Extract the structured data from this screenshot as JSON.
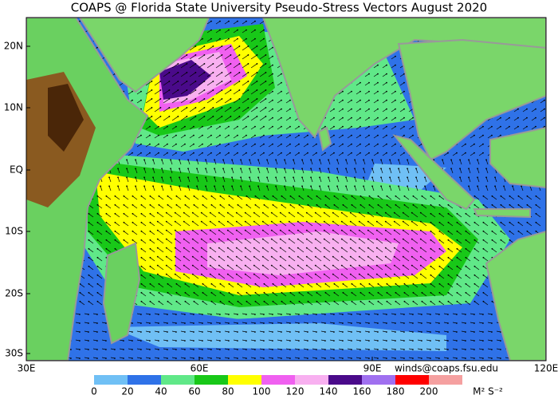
{
  "title": "COAPS @ Florida State University Pseudo-Stress Vectors August 2020",
  "lat_labels": [
    "20N",
    "10N",
    "EQ",
    "10S",
    "20S",
    "30S"
  ],
  "lon_labels": [
    "30E",
    "60E",
    "90E",
    "120E"
  ],
  "credit": "winds@coaps.fsu.edu",
  "colorbar": {
    "colors": [
      "#70c0f5",
      "#2f72e8",
      "#60e888",
      "#18c818",
      "#ffff00",
      "#f060f0",
      "#f8b0f0",
      "#4a0a8a",
      "#a070f0",
      "#ff0000",
      "#f5a0a0"
    ],
    "labels": [
      "0",
      "20",
      "40",
      "60",
      "80",
      "100",
      "120",
      "140",
      "160",
      "180",
      "200"
    ],
    "units": "M² S⁻²"
  }
}
